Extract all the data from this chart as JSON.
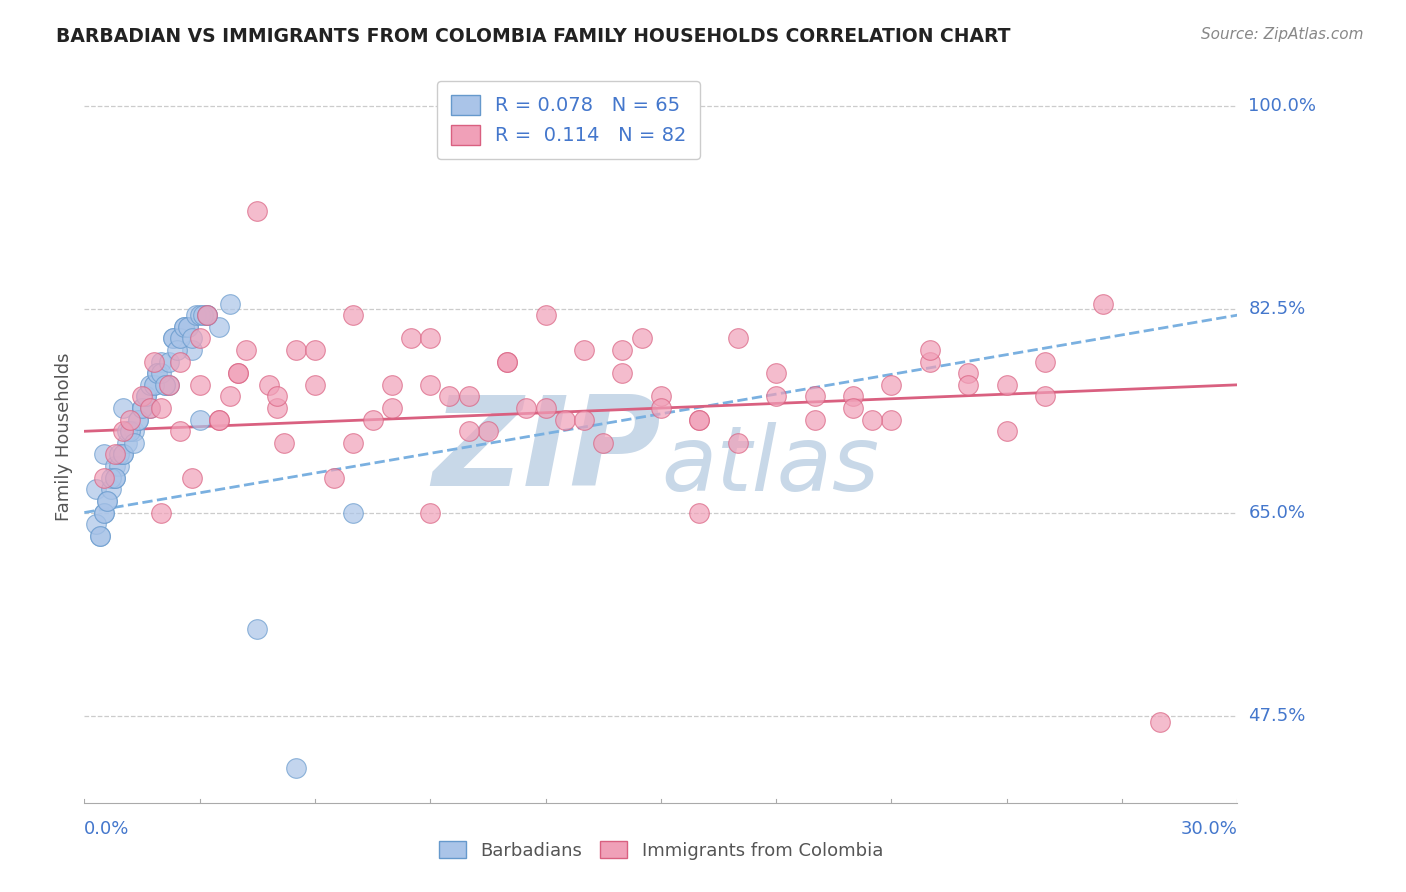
{
  "title": "BARBADIAN VS IMMIGRANTS FROM COLOMBIA FAMILY HOUSEHOLDS CORRELATION CHART",
  "source_text": "Source: ZipAtlas.com",
  "ylabel": "Family Households",
  "y_ticks": [
    47.5,
    65.0,
    82.5,
    100.0
  ],
  "y_tick_labels": [
    "47.5%",
    "65.0%",
    "82.5%",
    "100.0%"
  ],
  "x_min": 0.0,
  "x_max": 30.0,
  "y_min": 40.0,
  "y_max": 103.0,
  "barbadian_R": 0.078,
  "barbadian_N": 65,
  "colombia_R": 0.114,
  "colombia_N": 82,
  "barbadian_color": "#aac4e8",
  "barbadian_edge_color": "#6699cc",
  "colombia_color": "#f0a0b8",
  "colombia_edge_color": "#d96080",
  "trend_blue_color": "#7ab0e0",
  "trend_pink_color": "#d96080",
  "legend_R_color": "#4477cc",
  "watermark_color": "#c8d8e8",
  "background_color": "#ffffff",
  "grid_color": "#cccccc",
  "tick_label_color": "#4477cc",
  "barbadian_x": [
    0.3,
    0.4,
    0.5,
    0.5,
    0.6,
    0.7,
    0.8,
    0.8,
    0.9,
    1.0,
    1.0,
    1.1,
    1.2,
    1.3,
    1.4,
    1.5,
    1.6,
    1.7,
    1.8,
    1.9,
    2.0,
    2.1,
    2.2,
    2.3,
    2.5,
    2.6,
    2.7,
    2.8,
    3.0,
    3.2,
    3.5,
    3.8,
    4.5,
    0.3,
    0.4,
    0.5,
    0.6,
    0.7,
    0.8,
    0.9,
    1.0,
    1.1,
    1.2,
    1.3,
    1.4,
    1.5,
    1.6,
    1.7,
    1.8,
    1.9,
    2.0,
    2.1,
    2.2,
    2.3,
    2.4,
    2.5,
    2.6,
    2.7,
    2.8,
    2.9,
    3.0,
    3.1,
    3.2,
    5.5,
    7.0
  ],
  "barbadian_y": [
    67,
    63,
    65,
    70,
    66,
    67,
    68,
    69,
    69,
    70,
    74,
    71,
    72,
    72,
    73,
    74,
    75,
    74,
    76,
    77,
    78,
    76,
    76,
    80,
    80,
    81,
    81,
    79,
    73,
    82,
    81,
    83,
    55,
    64,
    63,
    65,
    66,
    68,
    68,
    70,
    70,
    72,
    72,
    71,
    73,
    74,
    75,
    76,
    76,
    77,
    77,
    76,
    78,
    80,
    79,
    80,
    81,
    81,
    80,
    82,
    82,
    82,
    82,
    43,
    65
  ],
  "colombia_x": [
    0.5,
    0.8,
    1.0,
    1.2,
    1.5,
    1.7,
    1.8,
    2.0,
    2.2,
    2.5,
    2.8,
    3.0,
    3.2,
    3.5,
    3.8,
    4.0,
    4.2,
    4.5,
    4.8,
    5.0,
    5.2,
    5.5,
    6.0,
    6.5,
    7.0,
    7.5,
    8.0,
    8.5,
    9.0,
    9.5,
    10.0,
    10.5,
    11.0,
    11.5,
    12.0,
    12.5,
    13.0,
    13.5,
    14.0,
    14.5,
    15.0,
    16.0,
    17.0,
    18.0,
    19.0,
    20.0,
    21.0,
    22.0,
    23.0,
    24.0,
    25.0,
    2.0,
    2.5,
    3.0,
    3.5,
    4.0,
    5.0,
    6.0,
    7.0,
    8.0,
    9.0,
    10.0,
    11.0,
    12.0,
    13.0,
    14.0,
    15.0,
    16.0,
    17.0,
    18.0,
    19.0,
    20.0,
    21.0,
    22.0,
    23.0,
    24.0,
    25.0,
    9.0,
    16.0,
    20.5,
    26.5,
    28.0
  ],
  "colombia_y": [
    68,
    70,
    72,
    73,
    75,
    74,
    78,
    65,
    76,
    78,
    68,
    80,
    82,
    73,
    75,
    77,
    79,
    91,
    76,
    74,
    71,
    79,
    76,
    68,
    82,
    73,
    74,
    80,
    76,
    75,
    75,
    72,
    78,
    74,
    82,
    73,
    79,
    71,
    77,
    80,
    75,
    73,
    71,
    77,
    75,
    75,
    76,
    78,
    77,
    76,
    75,
    74,
    72,
    76,
    73,
    77,
    75,
    79,
    71,
    76,
    80,
    72,
    78,
    74,
    73,
    79,
    74,
    73,
    80,
    75,
    73,
    74,
    73,
    79,
    76,
    72,
    78,
    65,
    65,
    73,
    83,
    47
  ]
}
